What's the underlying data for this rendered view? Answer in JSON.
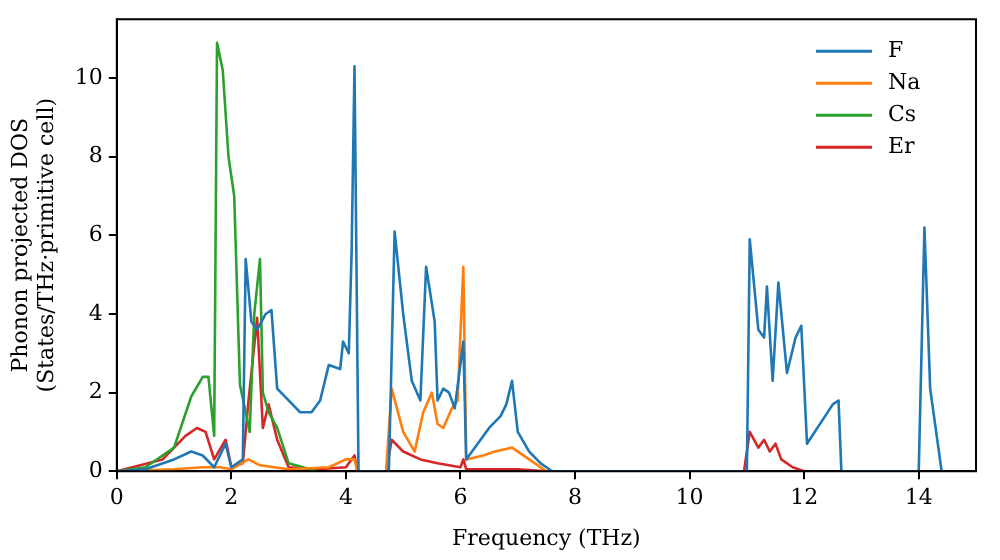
{
  "chart_data": {
    "type": "line",
    "xlabel": "Frequency (THz)",
    "ylabel": "Phonon projected DOS\n(States/THz·primitive cell)",
    "xlim": [
      0,
      15
    ],
    "xticks": [
      0,
      2,
      4,
      6,
      8,
      10,
      12,
      14
    ],
    "ylim": [
      0,
      11.5
    ],
    "yticks": [
      0,
      2,
      4,
      6,
      8,
      10
    ],
    "grid": false,
    "legend": "top right",
    "marker": "none",
    "line_style": "solid",
    "series": [
      {
        "name": "F",
        "color": "#1f77b4",
        "x": [
          0,
          0.5,
          1.0,
          1.3,
          1.5,
          1.7,
          1.9,
          2.0,
          2.2,
          2.25,
          2.35,
          2.45,
          2.6,
          2.7,
          2.8,
          3.0,
          3.2,
          3.4,
          3.55,
          3.7,
          3.9,
          3.95,
          4.05,
          4.1,
          4.15,
          4.22,
          4.75,
          4.85,
          5.0,
          5.15,
          5.3,
          5.4,
          5.55,
          5.6,
          5.7,
          5.8,
          5.9,
          6.05,
          6.1,
          6.3,
          6.5,
          6.7,
          6.8,
          6.9,
          7.0,
          7.2,
          7.4,
          7.5,
          7.6,
          11.0,
          11.05,
          11.2,
          11.3,
          11.35,
          11.45,
          11.55,
          11.7,
          11.85,
          11.95,
          12.05,
          12.5,
          12.6,
          12.65,
          14.0,
          14.1,
          14.2,
          14.4
        ],
        "values": [
          0,
          0.05,
          0.3,
          0.5,
          0.4,
          0.1,
          0.7,
          0.1,
          0.3,
          5.4,
          3.8,
          3.6,
          4.0,
          4.1,
          2.1,
          1.8,
          1.5,
          1.5,
          1.8,
          2.7,
          2.6,
          3.3,
          3.0,
          5.6,
          10.3,
          0,
          0,
          6.1,
          4.0,
          2.3,
          1.8,
          5.2,
          3.8,
          1.8,
          2.1,
          2.0,
          1.6,
          3.3,
          0.3,
          0.7,
          1.1,
          1.4,
          1.7,
          2.3,
          1.0,
          0.5,
          0.2,
          0.1,
          0,
          0,
          5.9,
          3.6,
          3.4,
          4.7,
          2.3,
          4.8,
          2.5,
          3.4,
          3.7,
          0.7,
          1.7,
          1.8,
          0,
          0,
          6.2,
          2.1,
          0
        ]
      },
      {
        "name": "Na",
        "color": "#ff7f0e",
        "x": [
          0,
          1.0,
          1.5,
          1.8,
          2.0,
          2.3,
          2.5,
          3.0,
          3.7,
          4.0,
          4.15,
          4.2,
          4.7,
          4.8,
          5.0,
          5.2,
          5.35,
          5.5,
          5.6,
          5.7,
          5.85,
          5.95,
          6.05,
          6.1,
          6.4,
          6.6,
          6.9,
          7.2,
          7.5
        ],
        "values": [
          0,
          0.05,
          0.1,
          0.1,
          0.05,
          0.3,
          0.15,
          0.05,
          0.1,
          0.3,
          0.3,
          0,
          0,
          2.1,
          1.0,
          0.5,
          1.5,
          2.0,
          1.2,
          1.1,
          1.6,
          1.8,
          5.2,
          0.3,
          0.4,
          0.5,
          0.6,
          0.3,
          0
        ]
      },
      {
        "name": "Cs",
        "color": "#2ca02c",
        "x": [
          0,
          0.5,
          1.0,
          1.3,
          1.5,
          1.6,
          1.7,
          1.75,
          1.85,
          1.95,
          2.05,
          2.15,
          2.2,
          2.32,
          2.4,
          2.5,
          2.55,
          2.65,
          2.8,
          3.0,
          3.5
        ],
        "values": [
          0,
          0.1,
          0.6,
          1.9,
          2.4,
          2.4,
          0.9,
          10.9,
          10.2,
          8.0,
          7.0,
          2.2,
          1.85,
          1.0,
          4.0,
          5.4,
          2.0,
          1.5,
          1.1,
          0.2,
          0
        ]
      },
      {
        "name": "Er",
        "color": "#d62728",
        "x": [
          0,
          0.8,
          1.2,
          1.4,
          1.55,
          1.7,
          1.9,
          2.0,
          2.2,
          2.3,
          2.45,
          2.55,
          2.65,
          2.8,
          3.0,
          3.5,
          4.0,
          4.15,
          4.2,
          4.7,
          4.8,
          5.0,
          5.3,
          5.6,
          6.0,
          6.05,
          6.1,
          7.0,
          7.5,
          10.95,
          11.05,
          11.2,
          11.3,
          11.4,
          11.5,
          11.6,
          11.8,
          12.0
        ],
        "values": [
          0,
          0.3,
          0.9,
          1.1,
          1.0,
          0.3,
          0.8,
          0.1,
          0.2,
          1.8,
          3.9,
          1.1,
          1.7,
          0.8,
          0.1,
          0.05,
          0.1,
          0.4,
          0,
          0,
          0.8,
          0.5,
          0.3,
          0.2,
          0.1,
          0.3,
          0.05,
          0.05,
          0,
          0,
          1.0,
          0.6,
          0.8,
          0.5,
          0.7,
          0.3,
          0.1,
          0
        ]
      }
    ]
  }
}
